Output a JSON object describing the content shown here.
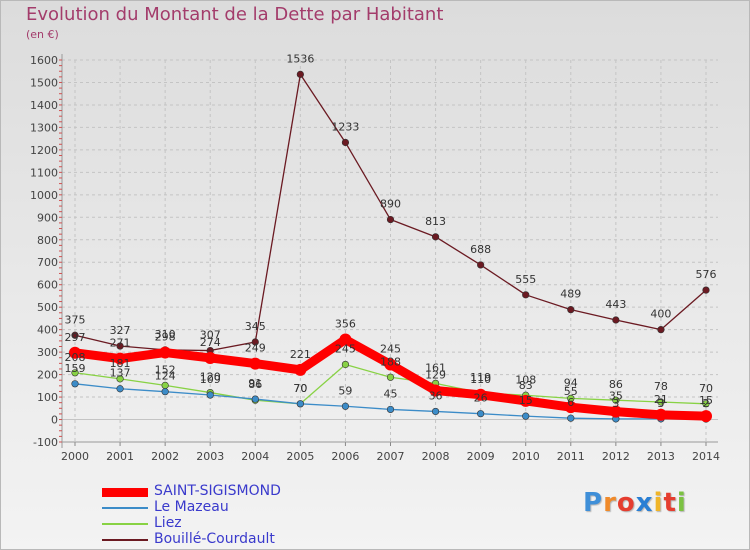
{
  "chart_data": {
    "type": "line",
    "title": "Evolution du Montant de la Dette par Habitant",
    "subtitle": "(en €)",
    "categories": [
      "2000",
      "2001",
      "2002",
      "2003",
      "2004",
      "2005",
      "2006",
      "2007",
      "2008",
      "2009",
      "2010",
      "2011",
      "2012",
      "2013",
      "2014"
    ],
    "ylim": [
      -100,
      1600
    ],
    "yticks": [
      "-100",
      "0",
      "100",
      "200",
      "300",
      "400",
      "500",
      "600",
      "700",
      "800",
      "900",
      "1000",
      "1100",
      "1200",
      "1300",
      "1400",
      "1500",
      "1600"
    ],
    "grid": true,
    "legend_position": "bottom-left",
    "series": [
      {
        "name": "SAINT-SIGISMOND",
        "color": "#ff0000",
        "values": [
          297,
          271,
          298,
          274,
          249,
          221,
          356,
          245,
          129,
          110,
          83,
          55,
          35,
          21,
          15
        ]
      },
      {
        "name": "Le Mazeau",
        "color": "#3c8cc8",
        "values": [
          159,
          137,
          124,
          109,
          91,
          70,
          59,
          45,
          36,
          26,
          15,
          6,
          3,
          3,
          2
        ]
      },
      {
        "name": "Liez",
        "color": "#88d244",
        "values": [
          208,
          181,
          152,
          120,
          86,
          70,
          245,
          188,
          161,
          119,
          108,
          94,
          86,
          78,
          70
        ]
      },
      {
        "name": "Bouillé-Courdault",
        "color": "#6b1a22",
        "values": [
          375,
          327,
          310,
          307,
          345,
          1536,
          1233,
          890,
          813,
          688,
          555,
          489,
          443,
          400,
          576
        ]
      }
    ],
    "data_labels": [
      {
        "series": "SAINT-SIGISMOND",
        "labels": [
          "297",
          "271",
          "298",
          "274",
          "249",
          "221",
          "356",
          "245",
          "129",
          "110",
          "83",
          "55",
          "35",
          "21",
          "15"
        ]
      },
      {
        "series": "Le Mazeau",
        "labels": [
          "159",
          "137",
          "124",
          "109",
          "91",
          "70",
          "59",
          "45",
          "36",
          "26",
          "15",
          "6",
          "3",
          "3",
          "2"
        ]
      },
      {
        "series": "Liez",
        "labels": [
          "208",
          "181",
          "152",
          "120",
          "86",
          "70",
          "245",
          "188",
          "161",
          "119",
          "108",
          "94",
          "86",
          "78",
          "70"
        ]
      },
      {
        "series": "Bouillé-Courdault",
        "labels": [
          "375",
          "327",
          "310",
          "307",
          "345",
          "1536",
          "1233",
          "890",
          "813",
          "688",
          "555",
          "489",
          "443",
          "400",
          "576"
        ]
      }
    ]
  },
  "logo": {
    "text": "Proxiti",
    "letters": [
      {
        "ch": "P",
        "color": "#3f8fd8"
      },
      {
        "ch": "r",
        "color": "#f08a2a"
      },
      {
        "ch": "o",
        "color": "#e53d2f"
      },
      {
        "ch": "x",
        "color": "#2a7fd4"
      },
      {
        "ch": "i",
        "color": "#f0b529"
      },
      {
        "ch": "t",
        "color": "#e53d2f"
      },
      {
        "ch": "i",
        "color": "#7cc242"
      }
    ]
  }
}
